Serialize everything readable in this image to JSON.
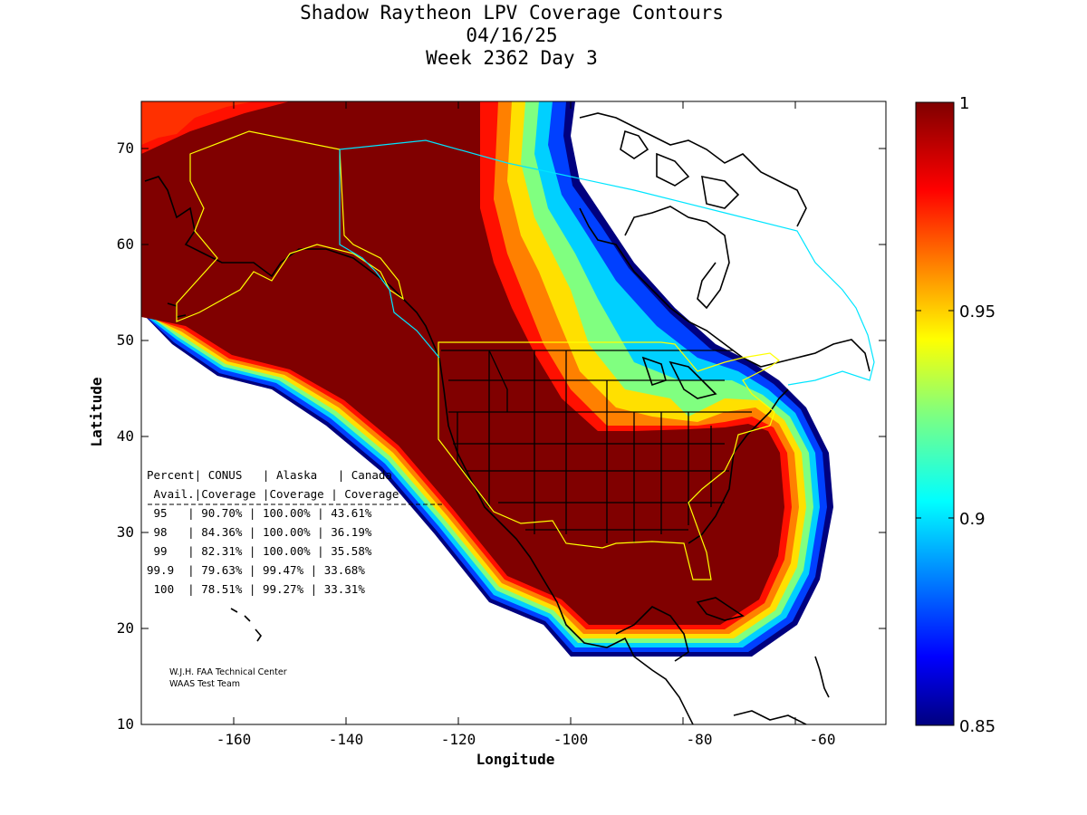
{
  "title": {
    "line1": "Shadow Raytheon LPV Coverage Contours",
    "line2": "04/16/25",
    "line3": "Week 2362 Day 3"
  },
  "axes": {
    "xlabel": "Longitude",
    "ylabel": "Latitude",
    "x_ticks": [
      "-160",
      "-140",
      "-120",
      "-100",
      "-80",
      "-60"
    ],
    "y_ticks": [
      "10",
      "20",
      "30",
      "40",
      "50",
      "60",
      "70"
    ],
    "xlim": [
      -175,
      -50
    ],
    "ylim": [
      10,
      75
    ]
  },
  "colorbar": {
    "ticks": [
      "0.85",
      "0.9",
      "0.95",
      "1"
    ],
    "range": [
      0.85,
      1.0
    ],
    "colormap": "jet"
  },
  "colors": {
    "coverage_full": "#800000",
    "coverage_edge": "#00007f",
    "coastline": "#000000",
    "region_boundary_conus": "#ffff00",
    "region_boundary_alaska_canada": "#00e5ff"
  },
  "table": {
    "header1": "Percent| CONUS   | Alaska   | Canada",
    "header2": " Avail.|Coverage |Coverage | Coverage",
    "rows": [
      {
        "pct": " 95  ",
        "conus": "90.70%",
        "alaska": "100.00%",
        "canada": "43.61%"
      },
      {
        "pct": " 98  ",
        "conus": "84.36%",
        "alaska": "100.00%",
        "canada": "36.19%"
      },
      {
        "pct": " 99  ",
        "conus": "82.31%",
        "alaska": "100.00%",
        "canada": "35.58%"
      },
      {
        "pct": "99.9 ",
        "conus": "79.63%",
        "alaska": "99.47%",
        "canada": "33.68%"
      },
      {
        "pct": " 100 ",
        "conus": "78.51%",
        "alaska": "99.27%",
        "canada": "33.31%"
      }
    ]
  },
  "credit": {
    "line1": "W.J.H. FAA Technical Center",
    "line2": "WAAS Test Team"
  }
}
